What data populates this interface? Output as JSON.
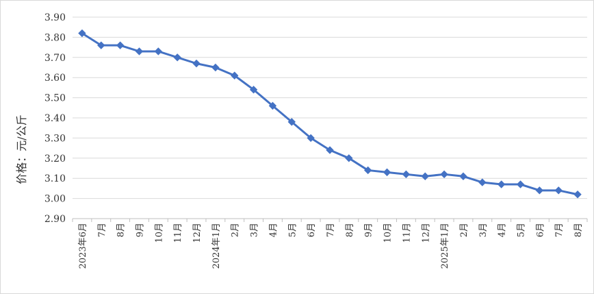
{
  "chart_data": {
    "type": "line",
    "ylabel": "价格：元/公斤",
    "xlabel": "",
    "ylim": [
      2.9,
      3.9
    ],
    "yticks": [
      "2.90",
      "3.00",
      "3.10",
      "3.20",
      "3.30",
      "3.40",
      "3.50",
      "3.60",
      "3.70",
      "3.80",
      "3.90"
    ],
    "grid": true,
    "legend": "none",
    "categories": [
      "2023年6月",
      "7月",
      "8月",
      "9月",
      "10月",
      "11月",
      "12月",
      "2024年1月",
      "2月",
      "3月",
      "4月",
      "5月",
      "6月",
      "7月",
      "8月",
      "9月",
      "10月",
      "11月",
      "12月",
      "2025年1月",
      "2月",
      "3月",
      "4月",
      "5月",
      "6月",
      "7月",
      "8月"
    ],
    "series": [
      {
        "color": "#4472C4",
        "marker": "diamond",
        "values": [
          3.82,
          3.76,
          3.76,
          3.73,
          3.73,
          3.7,
          3.67,
          3.65,
          3.61,
          3.54,
          3.46,
          3.38,
          3.3,
          3.24,
          3.2,
          3.14,
          3.13,
          3.12,
          3.11,
          3.12,
          3.11,
          3.08,
          3.07,
          3.07,
          3.04,
          3.04,
          3.02
        ]
      }
    ]
  }
}
